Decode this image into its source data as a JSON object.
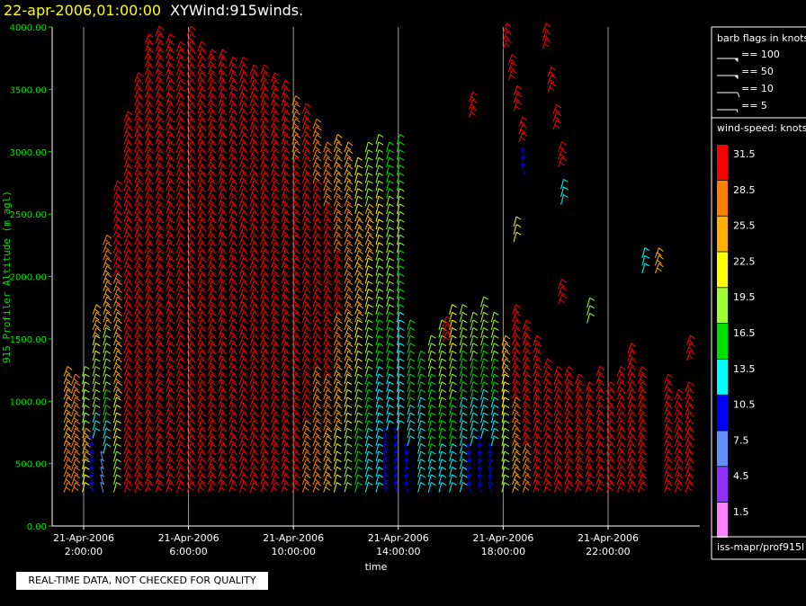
{
  "header": {
    "date": "22-apr-2006,01:00:00",
    "title": "XYWind:915winds."
  },
  "quality_note": "REAL-TIME DATA, NOT CHECKED FOR QUALITY",
  "barb_legend": {
    "title": "barb flags in knots",
    "items": [
      {
        "label": "== 100",
        "kind": "pennant"
      },
      {
        "label": "== 50",
        "kind": "pennant"
      },
      {
        "label": "== 10",
        "kind": "full"
      },
      {
        "label": "== 5",
        "kind": "half"
      }
    ]
  },
  "speed_legend": {
    "title": "wind-speed: knots",
    "bins": [
      {
        "label": "31.5",
        "color": "#ff0000"
      },
      {
        "label": "28.5",
        "color": "#ff8000"
      },
      {
        "label": "25.5",
        "color": "#ffb000"
      },
      {
        "label": "22.5",
        "color": "#ffff00"
      },
      {
        "label": "19.5",
        "color": "#a0ff30"
      },
      {
        "label": "16.5",
        "color": "#00e000"
      },
      {
        "label": "13.5",
        "color": "#00ffff"
      },
      {
        "label": "10.5",
        "color": "#0000ff"
      },
      {
        "label": "7.5",
        "color": "#6090ff"
      },
      {
        "label": "4.5",
        "color": "#9030ff"
      },
      {
        "label": "1.5",
        "color": "#ff80ff"
      }
    ]
  },
  "source": "iss-mapr/prof915l",
  "chart_data": {
    "type": "scatter",
    "subtype": "wind-barb time-height",
    "xlabel": "time",
    "ylabel": "915 Profiler Altitude (m agl)",
    "yticks": [
      "0.00",
      "500.00",
      "1000.00",
      "1500.00",
      "2000.00",
      "2500.00",
      "3000.00",
      "3500.00",
      "4000.00"
    ],
    "ylim": [
      0,
      4000
    ],
    "xlim_hours": [
      0.8,
      25.5
    ],
    "xticks": [
      {
        "hour": 2,
        "line1": "21-Apr-2006",
        "line2": "2:00:00"
      },
      {
        "hour": 6,
        "line1": "21-Apr-2006",
        "line2": "6:00:00"
      },
      {
        "hour": 10,
        "line1": "21-Apr-2006",
        "line2": "10:00:00"
      },
      {
        "hour": 14,
        "line1": "21-Apr-2006",
        "line2": "14:00:00"
      },
      {
        "hour": 18,
        "line1": "21-Apr-2006",
        "line2": "18:00:00"
      },
      {
        "hour": 22,
        "line1": "21-Apr-2006",
        "line2": "22:00:00"
      }
    ],
    "grid": true,
    "barb_columns": [
      {
        "t": 1.2,
        "top": 1200,
        "speed": [
          27,
          27,
          25,
          26,
          25
        ]
      },
      {
        "t": 1.5,
        "top": 1150,
        "speed": [
          28,
          28,
          27
        ]
      },
      {
        "t": 1.9,
        "top": 1200,
        "speed": [
          22,
          24,
          20,
          18
        ]
      },
      {
        "t": 2.3,
        "top": 1700,
        "speed": [
          9,
          10,
          12,
          18,
          20,
          22,
          26
        ]
      },
      {
        "t": 2.7,
        "top": 2300,
        "speed": [
          8,
          12,
          16,
          18,
          20,
          24,
          26,
          29
        ]
      },
      {
        "t": 3.1,
        "top": 2700,
        "speed": [
          20,
          22,
          24,
          26,
          28,
          30,
          32
        ]
      },
      {
        "t": 3.5,
        "top": 3250,
        "speed": [
          30,
          31,
          32,
          32,
          33,
          33,
          32,
          30
        ]
      },
      {
        "t": 3.9,
        "top": 3600,
        "speed": [
          31,
          32,
          33,
          33,
          34,
          33,
          32,
          30
        ]
      },
      {
        "t": 4.3,
        "top": 3900,
        "speed": [
          32,
          33,
          34,
          34,
          33,
          32,
          33
        ]
      },
      {
        "t": 4.7,
        "top": 3950,
        "speed": [
          31,
          32,
          33,
          34,
          34,
          33,
          32,
          31
        ]
      },
      {
        "t": 5.1,
        "top": 3900,
        "speed": [
          30,
          32,
          33,
          33,
          34,
          33,
          32
        ]
      },
      {
        "t": 5.5,
        "top": 3850,
        "speed": [
          31,
          33,
          34,
          34,
          33,
          32,
          31
        ]
      },
      {
        "t": 5.9,
        "top": 3950,
        "speed": [
          32,
          33,
          34,
          33,
          33,
          32,
          32
        ]
      },
      {
        "t": 6.3,
        "top": 3850,
        "speed": [
          32,
          33,
          33,
          34,
          32,
          31,
          30
        ]
      },
      {
        "t": 6.7,
        "top": 3800,
        "speed": [
          31,
          32,
          33,
          34,
          33,
          32,
          31
        ]
      },
      {
        "t": 7.1,
        "top": 3750,
        "speed": [
          31,
          32,
          33,
          33,
          33,
          32
        ]
      },
      {
        "t": 7.5,
        "top": 3700,
        "speed": [
          30,
          32,
          33,
          34,
          33,
          31
        ]
      },
      {
        "t": 7.9,
        "top": 3700,
        "speed": [
          31,
          32,
          34,
          33,
          32,
          31
        ]
      },
      {
        "t": 8.3,
        "top": 3650,
        "speed": [
          30,
          31,
          33,
          33,
          32,
          31
        ]
      },
      {
        "t": 8.7,
        "top": 3650,
        "speed": [
          31,
          32,
          33,
          33,
          32,
          30
        ]
      },
      {
        "t": 9.1,
        "top": 3600,
        "speed": [
          30,
          32,
          33,
          33,
          31,
          30
        ]
      },
      {
        "t": 9.5,
        "top": 3550,
        "speed": [
          31,
          32,
          33,
          32,
          31,
          30
        ]
      },
      {
        "t": 9.9,
        "top": 3400,
        "speed": [
          30,
          31,
          32,
          32,
          31,
          29
        ]
      },
      {
        "t": 10.3,
        "top": 3350,
        "speed": [
          28,
          30,
          31,
          32,
          31,
          30
        ]
      },
      {
        "t": 10.7,
        "top": 3200,
        "speed": [
          27,
          29,
          31,
          31,
          30,
          28
        ]
      },
      {
        "t": 11.1,
        "top": 3000,
        "speed": [
          26,
          28,
          30,
          31,
          30,
          27
        ]
      },
      {
        "t": 11.5,
        "top": 3100,
        "speed": [
          22,
          26,
          29,
          30,
          29,
          26
        ]
      },
      {
        "t": 11.9,
        "top": 3050,
        "speed": [
          18,
          22,
          26,
          28,
          28,
          25
        ]
      },
      {
        "t": 12.3,
        "top": 2900,
        "speed": [
          16,
          18,
          22,
          24,
          26,
          22
        ]
      },
      {
        "t": 12.7,
        "top": 3000,
        "speed": [
          14,
          16,
          19,
          22,
          24,
          20
        ]
      },
      {
        "t": 13.1,
        "top": 3100,
        "speed": [
          12,
          14,
          17,
          20,
          22,
          18
        ]
      },
      {
        "t": 13.5,
        "top": 3050,
        "speed": [
          11,
          13,
          16,
          18,
          20,
          16
        ]
      },
      {
        "t": 13.9,
        "top": 3100,
        "speed": [
          10,
          12,
          14,
          17,
          19,
          15
        ]
      },
      {
        "t": 14.3,
        "top": 1600,
        "speed": [
          11,
          13,
          15,
          17
        ]
      },
      {
        "t": 14.7,
        "top": 1350,
        "speed": [
          12,
          14,
          16
        ]
      },
      {
        "t": 15.1,
        "top": 1500,
        "speed": [
          13,
          15,
          17,
          19
        ]
      },
      {
        "t": 15.5,
        "top": 1600,
        "speed": [
          14,
          16,
          18,
          20
        ]
      },
      {
        "t": 15.9,
        "top": 1750,
        "speed": [
          13,
          15,
          18,
          21
        ]
      },
      {
        "t": 16.3,
        "top": 1700,
        "speed": [
          12,
          14,
          17,
          20
        ]
      },
      {
        "t": 16.7,
        "top": 1650,
        "speed": [
          11,
          14,
          16,
          19
        ]
      },
      {
        "t": 17.1,
        "top": 1800,
        "speed": [
          10,
          13,
          15,
          18
        ]
      },
      {
        "t": 17.5,
        "top": 1650,
        "speed": [
          11,
          14,
          17,
          20
        ]
      },
      {
        "t": 17.9,
        "top": 1500,
        "speed": [
          18,
          20,
          22,
          24
        ]
      },
      {
        "t": 18.3,
        "top": 1700,
        "speed": [
          26,
          28,
          30,
          31
        ]
      },
      {
        "t": 18.7,
        "top": 1600,
        "speed": [
          29,
          31,
          32,
          32
        ]
      },
      {
        "t": 19.1,
        "top": 1450,
        "speed": [
          31,
          32,
          33
        ]
      },
      {
        "t": 19.5,
        "top": 1300,
        "speed": [
          31,
          32,
          33
        ]
      },
      {
        "t": 19.9,
        "top": 1250,
        "speed": [
          30,
          32,
          32
        ]
      },
      {
        "t": 20.3,
        "top": 1200,
        "speed": [
          31,
          32,
          32
        ]
      },
      {
        "t": 20.7,
        "top": 1150,
        "speed": [
          30,
          31,
          32
        ]
      },
      {
        "t": 21.1,
        "top": 1100,
        "speed": [
          31,
          32,
          32
        ]
      },
      {
        "t": 21.5,
        "top": 1200,
        "speed": [
          32,
          33,
          32
        ]
      },
      {
        "t": 21.9,
        "top": 1100,
        "speed": [
          31,
          32,
          31
        ]
      },
      {
        "t": 22.3,
        "top": 1200,
        "speed": [
          32,
          33,
          33
        ]
      },
      {
        "t": 22.7,
        "top": 1400,
        "speed": [
          31,
          32,
          33,
          33
        ]
      },
      {
        "t": 23.1,
        "top": 1200,
        "speed": [
          31,
          32,
          32
        ]
      },
      {
        "t": 24.1,
        "top": 1150,
        "speed": [
          31,
          32,
          32
        ]
      },
      {
        "t": 24.5,
        "top": 1050,
        "speed": [
          30,
          31,
          32
        ]
      },
      {
        "t": 24.9,
        "top": 1100,
        "speed": [
          31,
          32,
          32
        ]
      }
    ],
    "upper_barbs": [
      {
        "t": 16.7,
        "alt": 3400,
        "speed": 31
      },
      {
        "t": 18.0,
        "alt": 3950,
        "speed": 32
      },
      {
        "t": 18.2,
        "alt": 3700,
        "speed": 32
      },
      {
        "t": 18.4,
        "alt": 3450,
        "speed": 32
      },
      {
        "t": 18.6,
        "alt": 3200,
        "speed": 31
      },
      {
        "t": 18.8,
        "alt": 2950,
        "speed": 10
      },
      {
        "t": 19.5,
        "alt": 3950,
        "speed": 32
      },
      {
        "t": 19.7,
        "alt": 3600,
        "speed": 32
      },
      {
        "t": 19.9,
        "alt": 3300,
        "speed": 31
      },
      {
        "t": 20.1,
        "alt": 3000,
        "speed": 31
      },
      {
        "t": 20.2,
        "alt": 2700,
        "speed": 12
      },
      {
        "t": 18.4,
        "alt": 2400,
        "speed": 22
      },
      {
        "t": 20.1,
        "alt": 1900,
        "speed": 31
      },
      {
        "t": 21.2,
        "alt": 1750,
        "speed": 19
      },
      {
        "t": 23.3,
        "alt": 2150,
        "speed": 13
      },
      {
        "t": 23.8,
        "alt": 2150,
        "speed": 24
      },
      {
        "t": 25.0,
        "alt": 1450,
        "speed": 31
      },
      {
        "t": 15.7,
        "alt": 1600,
        "speed": 31
      }
    ]
  }
}
